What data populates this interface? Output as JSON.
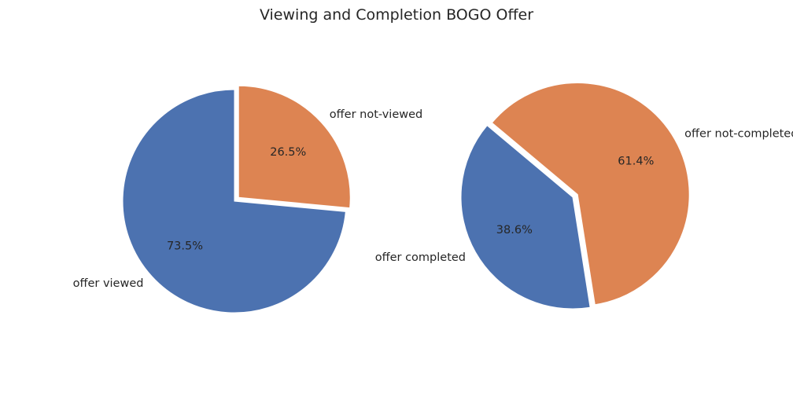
{
  "title": "Viewing and Completion BOGO Offer",
  "colors": {
    "blue": "#4c72b0",
    "orange": "#dd8452",
    "text": "#262626"
  },
  "chart_data": [
    {
      "type": "pie",
      "labels": [
        "offer viewed",
        "offer not-viewed"
      ],
      "values": [
        73.5,
        26.5
      ],
      "autopct": [
        "73.5%",
        "26.5%"
      ],
      "colors": [
        "#4c72b0",
        "#dd8452"
      ],
      "exploded_slice": "offer not-viewed"
    },
    {
      "type": "pie",
      "labels": [
        "offer completed",
        "offer not-completed"
      ],
      "values": [
        38.6,
        61.4
      ],
      "autopct": [
        "38.6%",
        "61.4%"
      ],
      "colors": [
        "#4c72b0",
        "#dd8452"
      ],
      "exploded_slice": "offer not-completed"
    }
  ]
}
